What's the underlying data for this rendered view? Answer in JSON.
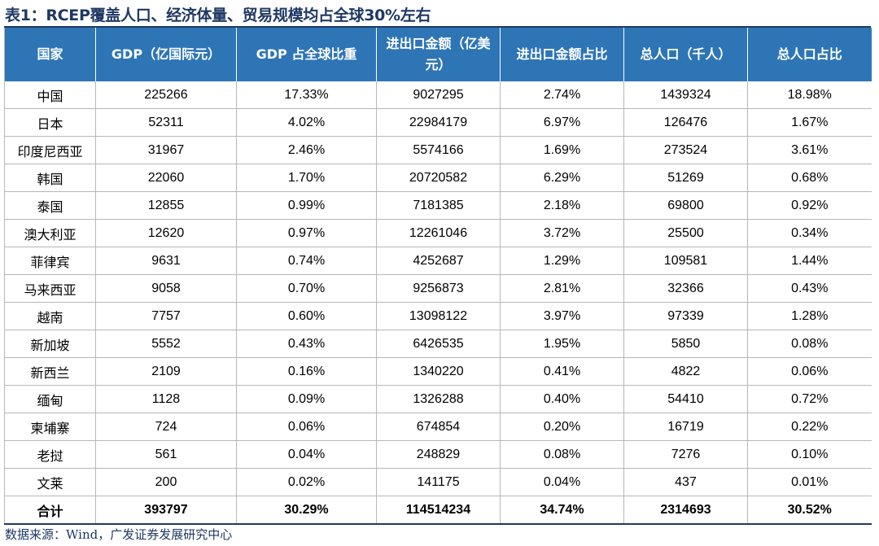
{
  "title": "表1：RCEP覆盖人口、经济体量、贸易规模均占全球30%左右",
  "headers": [
    "国家",
    "GDP（亿国际元）",
    "GDP 占全球比重",
    "进出口金额（亿美元）",
    "进出口金额占比",
    "总人口（千人）",
    "总人口占比"
  ],
  "rows": [
    [
      "中国",
      "225266",
      "17.33%",
      "9027295",
      "2.74%",
      "1439324",
      "18.98%"
    ],
    [
      "日本",
      "52311",
      "4.02%",
      "22984179",
      "6.97%",
      "126476",
      "1.67%"
    ],
    [
      "印度尼西亚",
      "31967",
      "2.46%",
      "5574166",
      "1.69%",
      "273524",
      "3.61%"
    ],
    [
      "韩国",
      "22060",
      "1.70%",
      "20720582",
      "6.29%",
      "51269",
      "0.68%"
    ],
    [
      "泰国",
      "12855",
      "0.99%",
      "7181385",
      "2.18%",
      "69800",
      "0.92%"
    ],
    [
      "澳大利亚",
      "12620",
      "0.97%",
      "12261046",
      "3.72%",
      "25500",
      "0.34%"
    ],
    [
      "菲律宾",
      "9631",
      "0.74%",
      "4252687",
      "1.29%",
      "109581",
      "1.44%"
    ],
    [
      "马来西亚",
      "9058",
      "0.70%",
      "9256873",
      "2.81%",
      "32366",
      "0.43%"
    ],
    [
      "越南",
      "7757",
      "0.60%",
      "13098122",
      "3.97%",
      "97339",
      "1.28%"
    ],
    [
      "新加坡",
      "5552",
      "0.43%",
      "6426535",
      "1.95%",
      "5850",
      "0.08%"
    ],
    [
      "新西兰",
      "2109",
      "0.16%",
      "1340220",
      "0.41%",
      "4822",
      "0.06%"
    ],
    [
      "缅甸",
      "1128",
      "0.09%",
      "1326288",
      "0.40%",
      "54410",
      "0.72%"
    ],
    [
      "柬埔寨",
      "724",
      "0.06%",
      "674854",
      "0.20%",
      "16719",
      "0.22%"
    ],
    [
      "老挝",
      "561",
      "0.04%",
      "248829",
      "0.08%",
      "7276",
      "0.10%"
    ],
    [
      "文莱",
      "200",
      "0.02%",
      "141175",
      "0.04%",
      "437",
      "0.01%"
    ]
  ],
  "total": [
    "合计",
    "393797",
    "30.29%",
    "114514234",
    "34.74%",
    "2314693",
    "30.52%"
  ],
  "source": "数据来源：Wind，广发证券发展研究中心",
  "colors": {
    "header_bg": "#2e75b6",
    "title": "#1f3864",
    "border": "#b7b7b7"
  }
}
